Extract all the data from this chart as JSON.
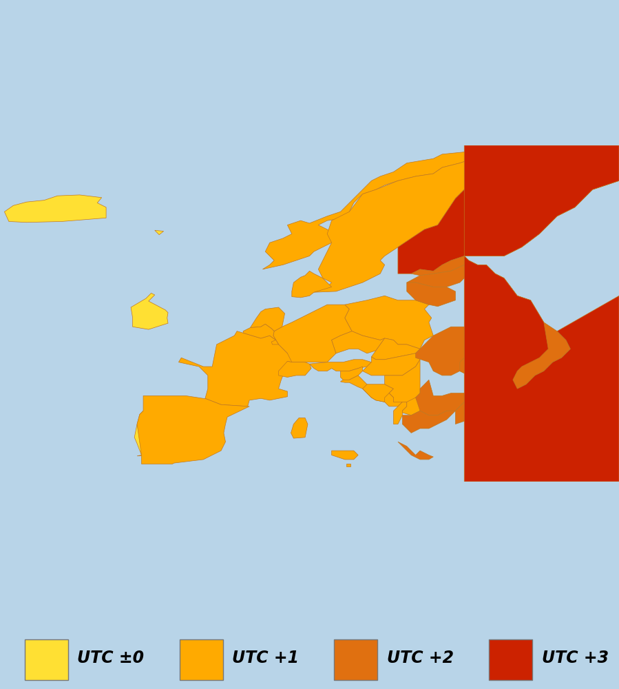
{
  "background_color": "#b8d4e8",
  "map_background": "#b8d4e8",
  "utc0_color": "#ffe033",
  "utc1_color": "#ffaa00",
  "utc2_color": "#e07010",
  "utc3_color": "#cc2200",
  "edge_color": "#c07820",
  "legend_items": [
    "UTC ±0",
    "UTC +1",
    "UTC +2",
    "UTC +3"
  ],
  "legend_colors": [
    "#ffe033",
    "#ffaa00",
    "#e07010",
    "#cc2200"
  ],
  "extent": [
    -25,
    45,
    34,
    72
  ],
  "figsize": [
    8.99,
    10.0
  ],
  "dpi": 100
}
